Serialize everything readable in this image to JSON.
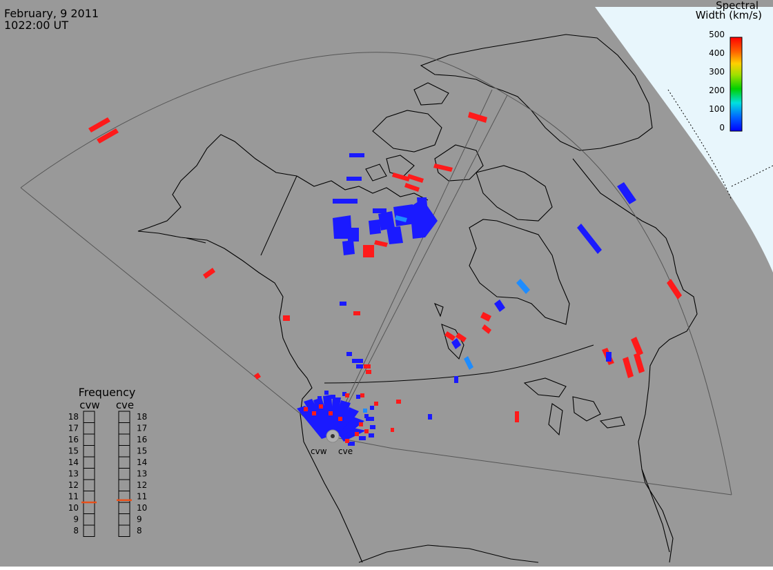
{
  "header": {
    "date": "February, 9 2011",
    "time": "1022:00 UT"
  },
  "colorbar": {
    "title_line1": "Spectral",
    "title_line2": "Width (km/s)",
    "ticks": [
      "500",
      "400",
      "300",
      "200",
      "100",
      "0"
    ],
    "range": [
      0,
      500
    ]
  },
  "frequency_panel": {
    "title": "Frequency",
    "left_label": "cvw",
    "right_label": "cve",
    "scale": [
      "18",
      "17",
      "16",
      "15",
      "14",
      "13",
      "12",
      "11",
      "10",
      "9",
      "8"
    ],
    "cvw_value": 10.5,
    "cve_value": 10.7,
    "marker_color": "#e8501a"
  },
  "radars": {
    "west_label": "cvw",
    "east_label": "cve"
  },
  "colors": {
    "background": "#999999",
    "night": "#e8f6fc",
    "blue": "#1a1aff",
    "light_blue": "#1e8cff",
    "red": "#ff1a1a"
  }
}
